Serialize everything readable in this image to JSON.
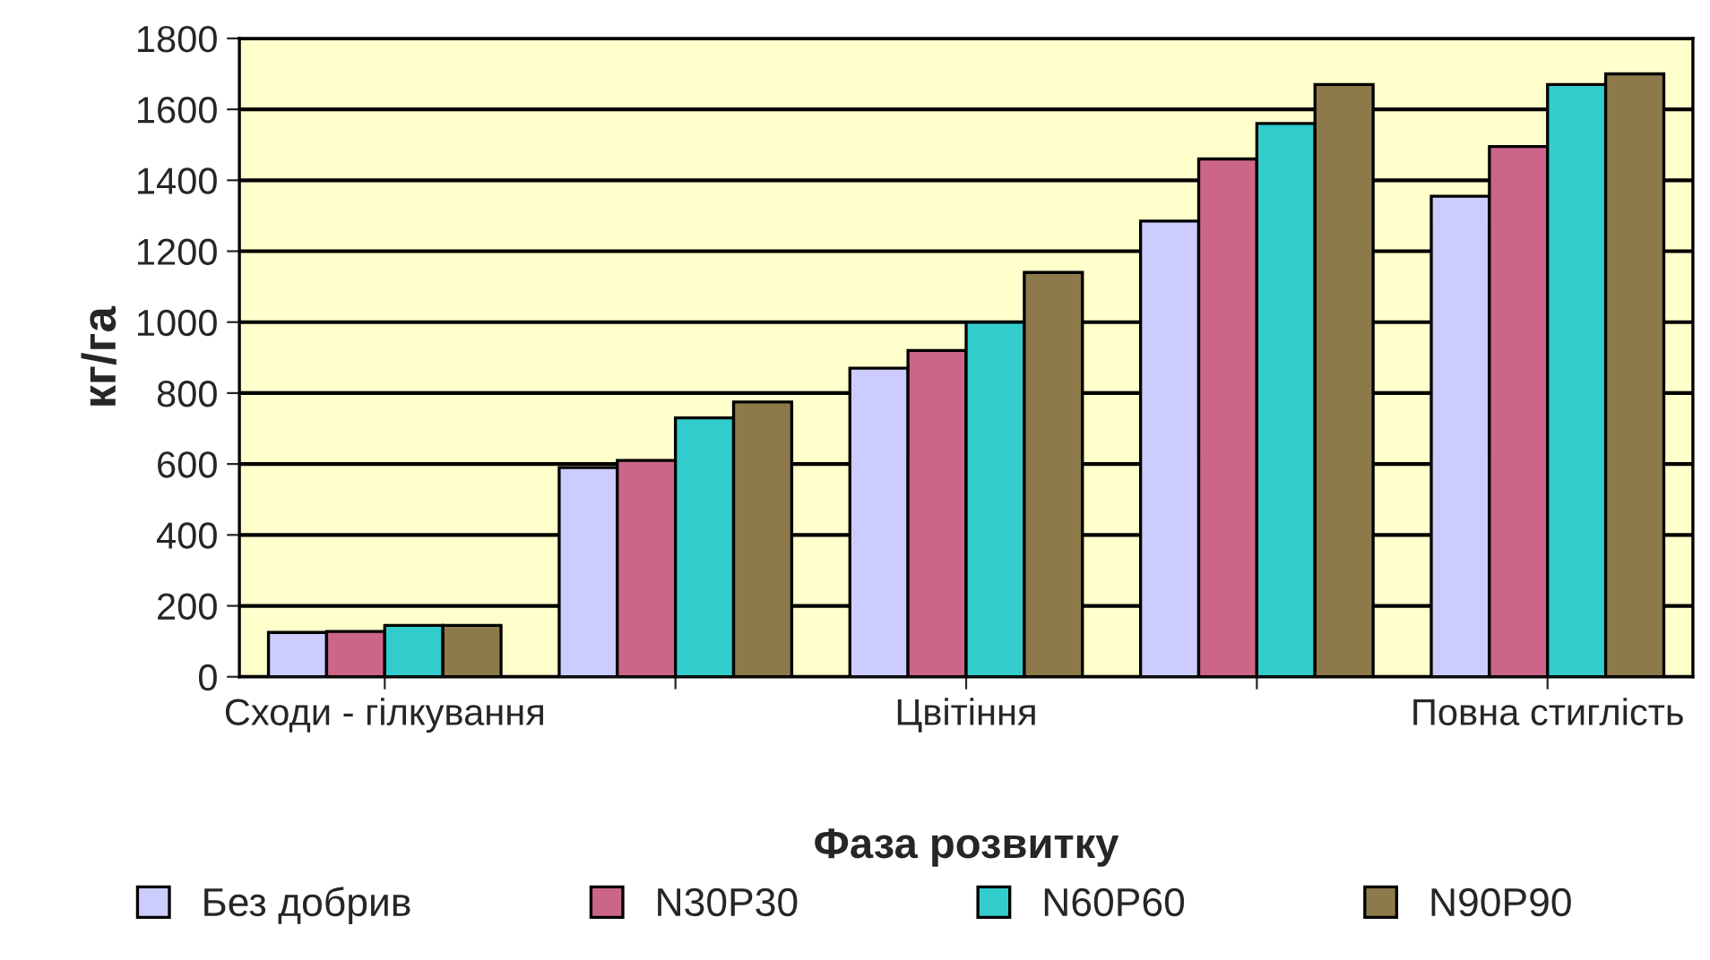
{
  "chart_data": {
    "type": "bar",
    "xlabel": "Фаза розвитку",
    "ylabel": "кг/га",
    "categories": [
      "Сходи - гілкування",
      null,
      "Цвітіння",
      null,
      "Повна стиглість"
    ],
    "series": [
      {
        "name": "Без добрив",
        "color": "#ccccff",
        "values": [
          125,
          590,
          870,
          1285,
          1355
        ]
      },
      {
        "name": "N30P30",
        "color": "#cc6688",
        "values": [
          128,
          610,
          920,
          1460,
          1495
        ]
      },
      {
        "name": "N60P60",
        "color": "#33cccc",
        "values": [
          145,
          730,
          1000,
          1560,
          1670
        ]
      },
      {
        "name": "N90P90",
        "color": "#8c7a4a",
        "values": [
          145,
          775,
          1140,
          1670,
          1700
        ]
      }
    ],
    "ylim": [
      0,
      1800
    ],
    "yticks": [
      0,
      200,
      400,
      600,
      800,
      1000,
      1200,
      1400,
      1600,
      1800
    ],
    "grid": "y",
    "legend": "bottom"
  }
}
